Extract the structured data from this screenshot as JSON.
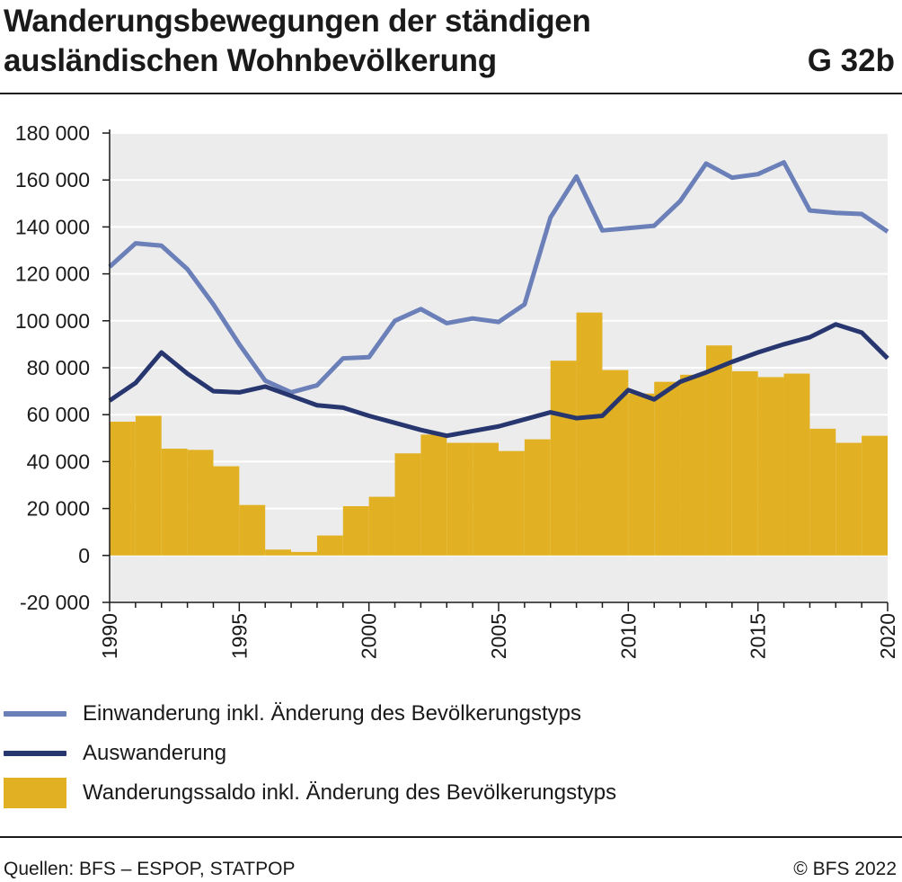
{
  "header": {
    "title_line1": "Wanderungsbewegungen der ständigen",
    "title_line2": "ausländischen Wohnbevölkerung",
    "figure_number": "G 32b"
  },
  "footer": {
    "source": "Quellen: BFS – ESPOP, STATPOP",
    "copyright": "© BFS 2022"
  },
  "colors": {
    "immigration": "#6b7fb8",
    "emigration": "#27366e",
    "net_migration": "#e2b123",
    "plot_background": "#ececec",
    "grid": "#ffffff"
  },
  "legend": {
    "position": "bottom",
    "items": [
      {
        "label": "Einwanderung inkl. Änderung des Bevölkerungstyps",
        "kind": "line",
        "color": "#6b7fb8"
      },
      {
        "label": "Auswanderung",
        "kind": "line",
        "color": "#27366e"
      },
      {
        "label": "Wanderungssaldo inkl. Änderung des Bevölkerungstyps",
        "kind": "bar",
        "color": "#e2b123"
      }
    ]
  },
  "chart_data": {
    "type": "bar",
    "title": "Wanderungsbewegungen der ständigen ausländischen Wohnbevölkerung",
    "xlabel": "",
    "ylabel": "",
    "x": [
      1990,
      1991,
      1992,
      1993,
      1994,
      1995,
      1996,
      1997,
      1998,
      1999,
      2000,
      2001,
      2002,
      2003,
      2004,
      2005,
      2006,
      2007,
      2008,
      2009,
      2010,
      2011,
      2012,
      2013,
      2014,
      2015,
      2016,
      2017,
      2018,
      2019,
      2020
    ],
    "xlim": [
      1990,
      2020
    ],
    "x_ticks": [
      "1990",
      "1995",
      "2000",
      "2005",
      "2010",
      "2015",
      "2020"
    ],
    "x_tick_values": [
      1990,
      1995,
      2000,
      2005,
      2010,
      2015,
      2020
    ],
    "ylim": [
      -20000,
      180000
    ],
    "y_ticks": [
      "-20 000",
      "0",
      "20 000",
      "40 000",
      "60 000",
      "80 000",
      "100 000",
      "120 000",
      "140 000",
      "160 000",
      "180 000"
    ],
    "y_tick_values": [
      -20000,
      0,
      20000,
      40000,
      60000,
      80000,
      100000,
      120000,
      140000,
      160000,
      180000
    ],
    "grid": true,
    "series": [
      {
        "name": "Einwanderung inkl. Änderung des Bevölkerungstyps",
        "type": "line",
        "values": [
          123000,
          133000,
          132000,
          122000,
          107000,
          90000,
          74500,
          69500,
          72500,
          84000,
          84500,
          100000,
          105000,
          99000,
          101000,
          99500,
          107000,
          144000,
          161500,
          138500,
          139500,
          140500,
          151000,
          167000,
          161000,
          162500,
          167500,
          147000,
          146000,
          145500,
          138000
        ]
      },
      {
        "name": "Auswanderung",
        "type": "line",
        "values": [
          66000,
          73500,
          86500,
          77500,
          70000,
          69500,
          72000,
          68000,
          64000,
          63000,
          59500,
          56500,
          53500,
          51000,
          53000,
          55000,
          58000,
          61000,
          58500,
          59500,
          70500,
          66500,
          74000,
          78000,
          82500,
          86500,
          90000,
          93000,
          98500,
          95000,
          84000
        ]
      },
      {
        "name": "Wanderungssaldo inkl. Änderung des Bevölkerungstyps",
        "type": "bar",
        "values": [
          57000,
          59500,
          45500,
          45000,
          38000,
          21500,
          2500,
          1500,
          8500,
          21000,
          25000,
          43500,
          51500,
          48000,
          48000,
          44500,
          49500,
          83000,
          103500,
          79000,
          69000,
          74000,
          77000,
          89500,
          78500,
          76000,
          77500,
          54000,
          48000,
          51000,
          51000
        ]
      }
    ]
  }
}
